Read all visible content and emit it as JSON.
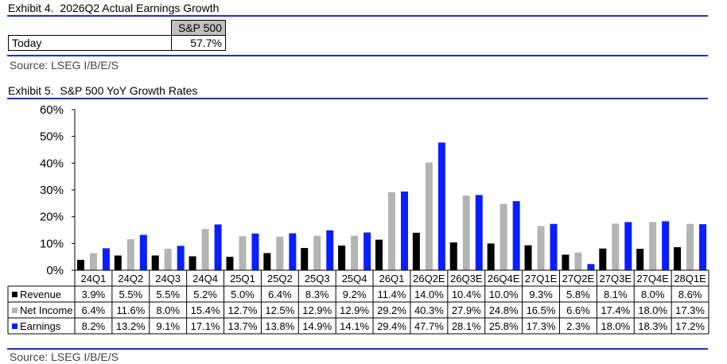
{
  "exhibit4": {
    "title": "Exhibit 4.  2026Q2 Actual Earnings Growth",
    "column_header": "S&P 500",
    "row_label": "Today",
    "row_value": "57.7%",
    "source": "Source: LSEG I/B/E/S"
  },
  "exhibit5": {
    "title": "Exhibit 5.  S&P 500 YoY Growth Rates",
    "source": "Source: LSEG I/B/E/S"
  },
  "colors": {
    "rule": "#1f2fbf",
    "revenue": "#000000",
    "net_income": "#b4b4b4",
    "earnings": "#0a1fff"
  },
  "chart_data": {
    "type": "bar",
    "categories": [
      "24Q1",
      "24Q2",
      "24Q3",
      "24Q4",
      "25Q1",
      "25Q2",
      "25Q3",
      "25Q4",
      "26Q1",
      "26Q2E",
      "26Q3E",
      "26Q4E",
      "27Q1E",
      "27Q2E",
      "27Q3E",
      "27Q4E",
      "28Q1E"
    ],
    "series": [
      {
        "name": "Revenue",
        "color": "#000000",
        "values": [
          3.9,
          5.5,
          5.5,
          5.2,
          5.0,
          6.4,
          8.3,
          9.2,
          11.4,
          14.0,
          10.4,
          10.0,
          9.3,
          5.8,
          8.1,
          8.0,
          8.6
        ],
        "labels": [
          "3.9%",
          "5.5%",
          "5.5%",
          "5.2%",
          "5.0%",
          "6.4%",
          "8.3%",
          "9.2%",
          "11.4%",
          "14.0%",
          "10.4%",
          "10.0%",
          "9.3%",
          "5.8%",
          "8.1%",
          "8.0%",
          "8.6%"
        ]
      },
      {
        "name": "Net Income",
        "color": "#b4b4b4",
        "values": [
          6.4,
          11.6,
          8.0,
          15.4,
          12.7,
          12.5,
          12.9,
          12.9,
          29.2,
          40.3,
          27.9,
          24.8,
          16.5,
          6.6,
          17.4,
          18.0,
          17.3
        ],
        "labels": [
          "6.4%",
          "11.6%",
          "8.0%",
          "15.4%",
          "12.7%",
          "12.5%",
          "12.9%",
          "12.9%",
          "29.2%",
          "40.3%",
          "27.9%",
          "24.8%",
          "16.5%",
          "6.6%",
          "17.4%",
          "18.0%",
          "17.3%"
        ]
      },
      {
        "name": "Earnings",
        "color": "#0a1fff",
        "values": [
          8.2,
          13.2,
          9.1,
          17.1,
          13.7,
          13.8,
          14.9,
          14.1,
          29.4,
          47.7,
          28.1,
          25.8,
          17.3,
          2.3,
          18.0,
          18.3,
          17.2
        ],
        "labels": [
          "8.2%",
          "13.2%",
          "9.1%",
          "17.1%",
          "13.7%",
          "13.8%",
          "14.9%",
          "14.1%",
          "29.4%",
          "47.7%",
          "28.1%",
          "25.8%",
          "17.3%",
          "2.3%",
          "18.0%",
          "18.3%",
          "17.2%"
        ]
      }
    ],
    "ylim": [
      0,
      60
    ],
    "yticks": [
      "0%",
      "10%",
      "20%",
      "30%",
      "40%",
      "50%",
      "60%"
    ],
    "grid": false,
    "legend": "data table below chart"
  }
}
